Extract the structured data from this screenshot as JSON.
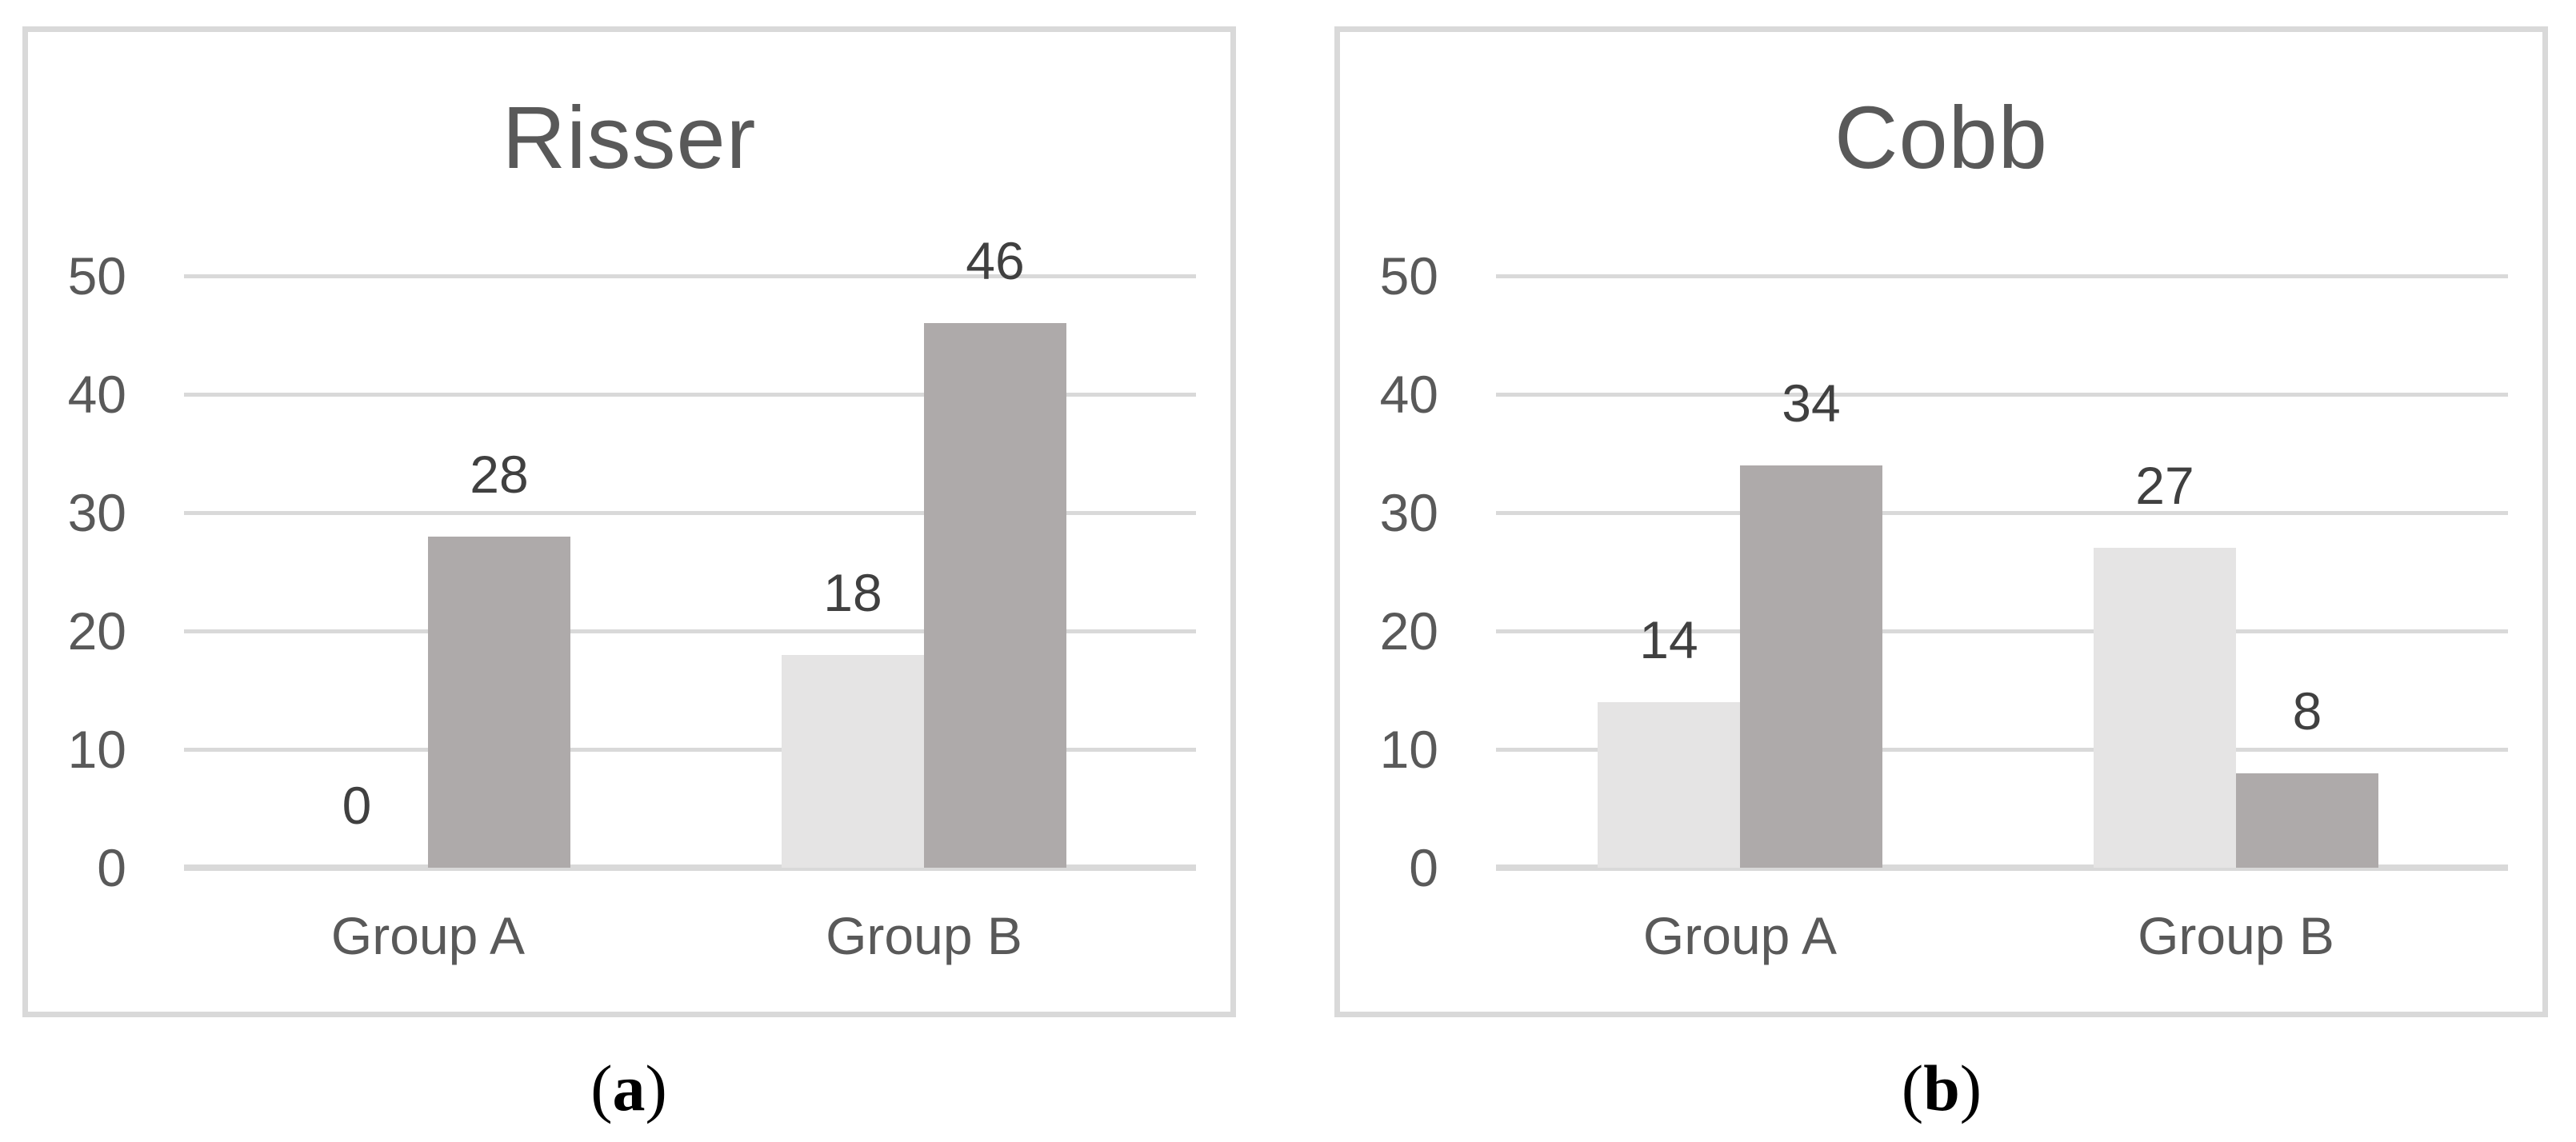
{
  "figure": {
    "captions": [
      {
        "open": "(",
        "letter": "a",
        "close": ")"
      },
      {
        "open": "(",
        "letter": "b",
        "close": ")"
      }
    ],
    "colors": {
      "series_light": "#e5e4e4",
      "series_dark": "#aeaaaa",
      "gridline": "#d9d9d9",
      "panel_border": "#d9d9d9",
      "title_text": "#595959",
      "axis_text": "#595959",
      "data_label_text": "#404040",
      "caption_text": "#000000"
    }
  },
  "chart_data": [
    {
      "type": "bar",
      "title": "Risser",
      "categories": [
        "Group A",
        "Group B"
      ],
      "series": [
        {
          "name": "series-light",
          "color": "#e5e4e4",
          "values": [
            0,
            18
          ]
        },
        {
          "name": "series-dark",
          "color": "#aeaaaa",
          "values": [
            28,
            46
          ]
        }
      ],
      "data_labels": {
        "series-light": [
          0,
          18
        ],
        "series-dark": [
          28,
          46
        ]
      },
      "xlabel": "",
      "ylabel": "",
      "ylim": [
        0,
        50
      ],
      "yticks": [
        0,
        10,
        20,
        30,
        40,
        50
      ],
      "grid": true,
      "legend_position": "none"
    },
    {
      "type": "bar",
      "title": "Cobb",
      "categories": [
        "Group A",
        "Group B"
      ],
      "series": [
        {
          "name": "series-light",
          "color": "#e5e4e4",
          "values": [
            14,
            27
          ]
        },
        {
          "name": "series-dark",
          "color": "#aeaaaa",
          "values": [
            34,
            8
          ]
        }
      ],
      "data_labels": {
        "series-light": [
          14,
          27
        ],
        "series-dark": [
          34,
          8
        ]
      },
      "xlabel": "",
      "ylabel": "",
      "ylim": [
        0,
        50
      ],
      "yticks": [
        0,
        10,
        20,
        30,
        40,
        50
      ],
      "grid": true,
      "legend_position": "none"
    }
  ]
}
